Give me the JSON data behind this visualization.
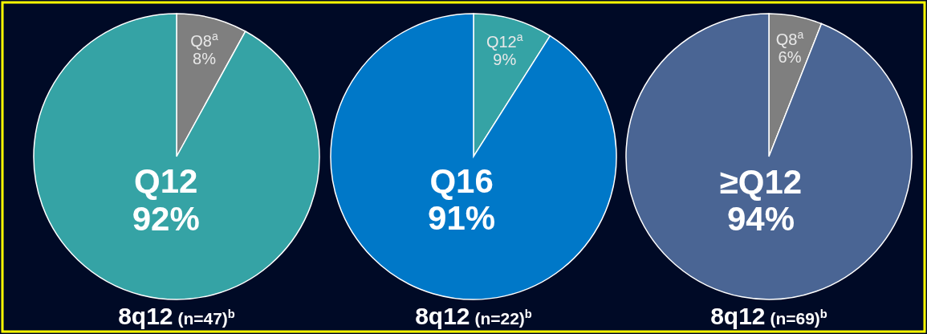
{
  "chart_data": [
    {
      "type": "pie",
      "title": "8q12 (n=47)$^{b}$",
      "categories": [
        "Q8$^{a}$",
        "Q12"
      ],
      "values": [
        8,
        92
      ],
      "colors": [
        "#7f7f7f",
        "#35a3a5"
      ],
      "value_labels": [
        "8%",
        "92%"
      ]
    },
    {
      "type": "pie",
      "title": "8q12 (n=22)$^{b}$",
      "categories": [
        "Q12$^{a}$",
        "Q16"
      ],
      "values": [
        9,
        91
      ],
      "colors": [
        "#35a3a5",
        "#0078c8"
      ],
      "value_labels": [
        "9%",
        "91%"
      ]
    },
    {
      "type": "pie",
      "title": "8q12 (n=69)$^{b}$",
      "categories": [
        "Q8$^{a}$",
        "≥Q12"
      ],
      "values": [
        6,
        94
      ],
      "colors": [
        "#7f7f7f",
        "#4a6594"
      ],
      "value_labels": [
        "6%",
        "94%"
      ]
    }
  ]
}
